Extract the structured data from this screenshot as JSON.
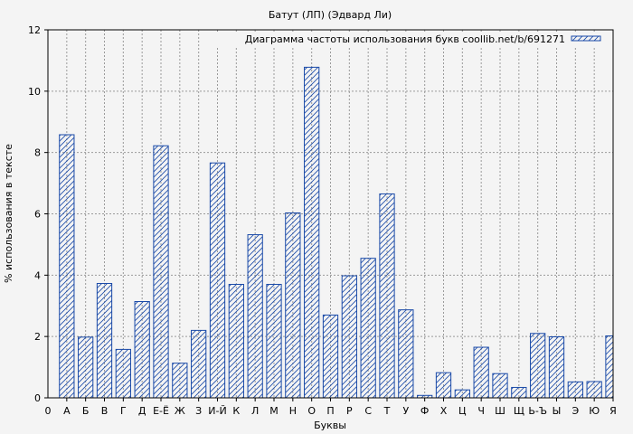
{
  "chart_data": {
    "type": "bar",
    "title": "Батут (ЛП) (Эдвард Ли)",
    "xlabel": "Буквы",
    "ylabel": "% использования в тексте",
    "legend": "Диаграмма частоты использования букв coollib.net/b/691271",
    "legend_position": "top-right",
    "grid": true,
    "ylim": [
      0,
      12
    ],
    "yticks": [
      0,
      2,
      4,
      6,
      8,
      10,
      12
    ],
    "x_start_label": "0",
    "categories": [
      "А",
      "Б",
      "В",
      "Г",
      "Д",
      "Е-Ё",
      "Ж",
      "З",
      "И-Й",
      "К",
      "Л",
      "М",
      "Н",
      "О",
      "П",
      "Р",
      "С",
      "Т",
      "У",
      "Ф",
      "Х",
      "Ц",
      "Ч",
      "Ш",
      "Щ",
      "Ь-Ъ",
      "Ы",
      "Э",
      "Ю",
      "Я"
    ],
    "values": [
      8.58,
      1.98,
      3.73,
      1.58,
      3.14,
      8.22,
      1.13,
      2.2,
      7.66,
      3.7,
      5.32,
      3.7,
      6.03,
      10.78,
      2.7,
      3.98,
      4.55,
      6.65,
      2.87,
      0.08,
      0.82,
      0.26,
      1.65,
      0.79,
      0.34,
      2.1,
      1.99,
      0.52,
      0.53,
      2.02
    ],
    "colors": {
      "bar": "#1a4aa8",
      "grid": "#9a9a9a",
      "plot_bg": "#f4f4f4"
    }
  }
}
